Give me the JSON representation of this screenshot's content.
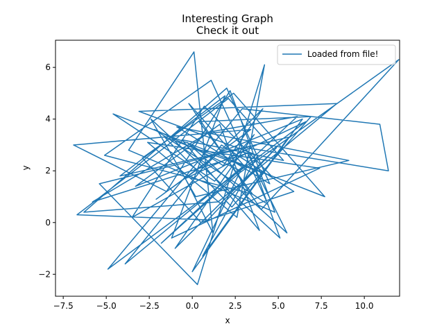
{
  "chart_data": {
    "type": "line",
    "title": "Interesting Graph",
    "subtitle": "Check it out",
    "xlabel": "x",
    "ylabel": "y",
    "xlim": [
      -7.95,
      12.05
    ],
    "ylim": [
      -2.85,
      7.05
    ],
    "xticks": [
      -7.5,
      -5.0,
      -2.5,
      0.0,
      2.5,
      5.0,
      7.5,
      10.0
    ],
    "xtick_labels": [
      "−7.5",
      "−5.0",
      "−2.5",
      "0.0",
      "2.5",
      "5.0",
      "7.5",
      "10.0"
    ],
    "yticks": [
      -2,
      0,
      2,
      4,
      6
    ],
    "ytick_labels": [
      "−2",
      "0",
      "2",
      "4",
      "6"
    ],
    "grid": false,
    "legend_position": "top-right",
    "series": [
      {
        "name": "Loaded from file!",
        "color": "#1f77b4",
        "x": [
          0.8,
          -2.1,
          3.4,
          -6.9,
          -1.5,
          2.2,
          4.8,
          -3.7,
          0.1,
          1.2,
          -0.4,
          6.6,
          -4.9,
          2.9,
          10.9,
          11.4,
          3.1,
          -5.4,
          0.3,
          4.2,
          2.6,
          -2.6,
          7.4,
          -1.2,
          1.9,
          -4.2,
          5.6,
          0.6,
          3.8,
          -3.1,
          8.4,
          1.5,
          -6.3,
          2.0,
          4.5,
          -0.9,
          9.1,
          0.2,
          -2.4,
          5.1,
          3.3,
          -5.8,
          1.0,
          6.1,
          -1.8,
          2.7,
          12.0,
          4.0,
          -0.2,
          3.0,
          -3.9,
          1.7,
          5.9,
          0.5,
          -2.9,
          2.4,
          7.7,
          -4.6,
          1.3,
          3.6,
          -1.0,
          4.9,
          0.9,
          -6.7,
          2.1,
          5.3,
          -0.6,
          3.9,
          1.6,
          -3.3,
          6.4,
          0.0,
          2.8,
          -2.2,
          4.4,
          1.1,
          -5.1,
          3.5,
          0.4,
          6.9,
          2.3,
          -1.6,
          4.6,
          0.7,
          -3.5,
          3.2,
          5.5,
          -0.3,
          1.8,
          4.1,
          0.3
        ],
        "y": [
          2.3,
          0.9,
          3.6,
          3.0,
          1.2,
          5.1,
          0.4,
          2.8,
          6.6,
          -0.4,
          1.7,
          3.9,
          -1.8,
          4.4,
          3.8,
          2.0,
          2.9,
          1.5,
          -2.4,
          6.1,
          0.2,
          3.1,
          2.1,
          -0.6,
          4.9,
          1.8,
          3.3,
          -1.3,
          2.6,
          4.3,
          4.6,
          0.8,
          0.4,
          5.2,
          1.5,
          3.7,
          2.4,
          1.0,
          4.0,
          -0.6,
          2.7,
          0.8,
          3.5,
          4.1,
          -0.8,
          1.9,
          6.3,
          0.5,
          4.6,
          2.2,
          -1.6,
          3.0,
          1.2,
          0.0,
          2.5,
          5.0,
          1.0,
          4.2,
          1.6,
          3.4,
          -1.0,
          2.9,
          0.1,
          0.3,
          4.8,
          2.4,
          3.2,
          -0.3,
          3.8,
          1.4,
          4.0,
          -1.9,
          2.0,
          3.6,
          0.7,
          5.5,
          2.6,
          1.1,
          3.9,
          4.1,
          0.6,
          3.3,
          1.8,
          4.5,
          0.2,
          2.7,
          -0.4,
          3.1,
          2.2,
          4.4,
          1.9
        ]
      }
    ]
  }
}
